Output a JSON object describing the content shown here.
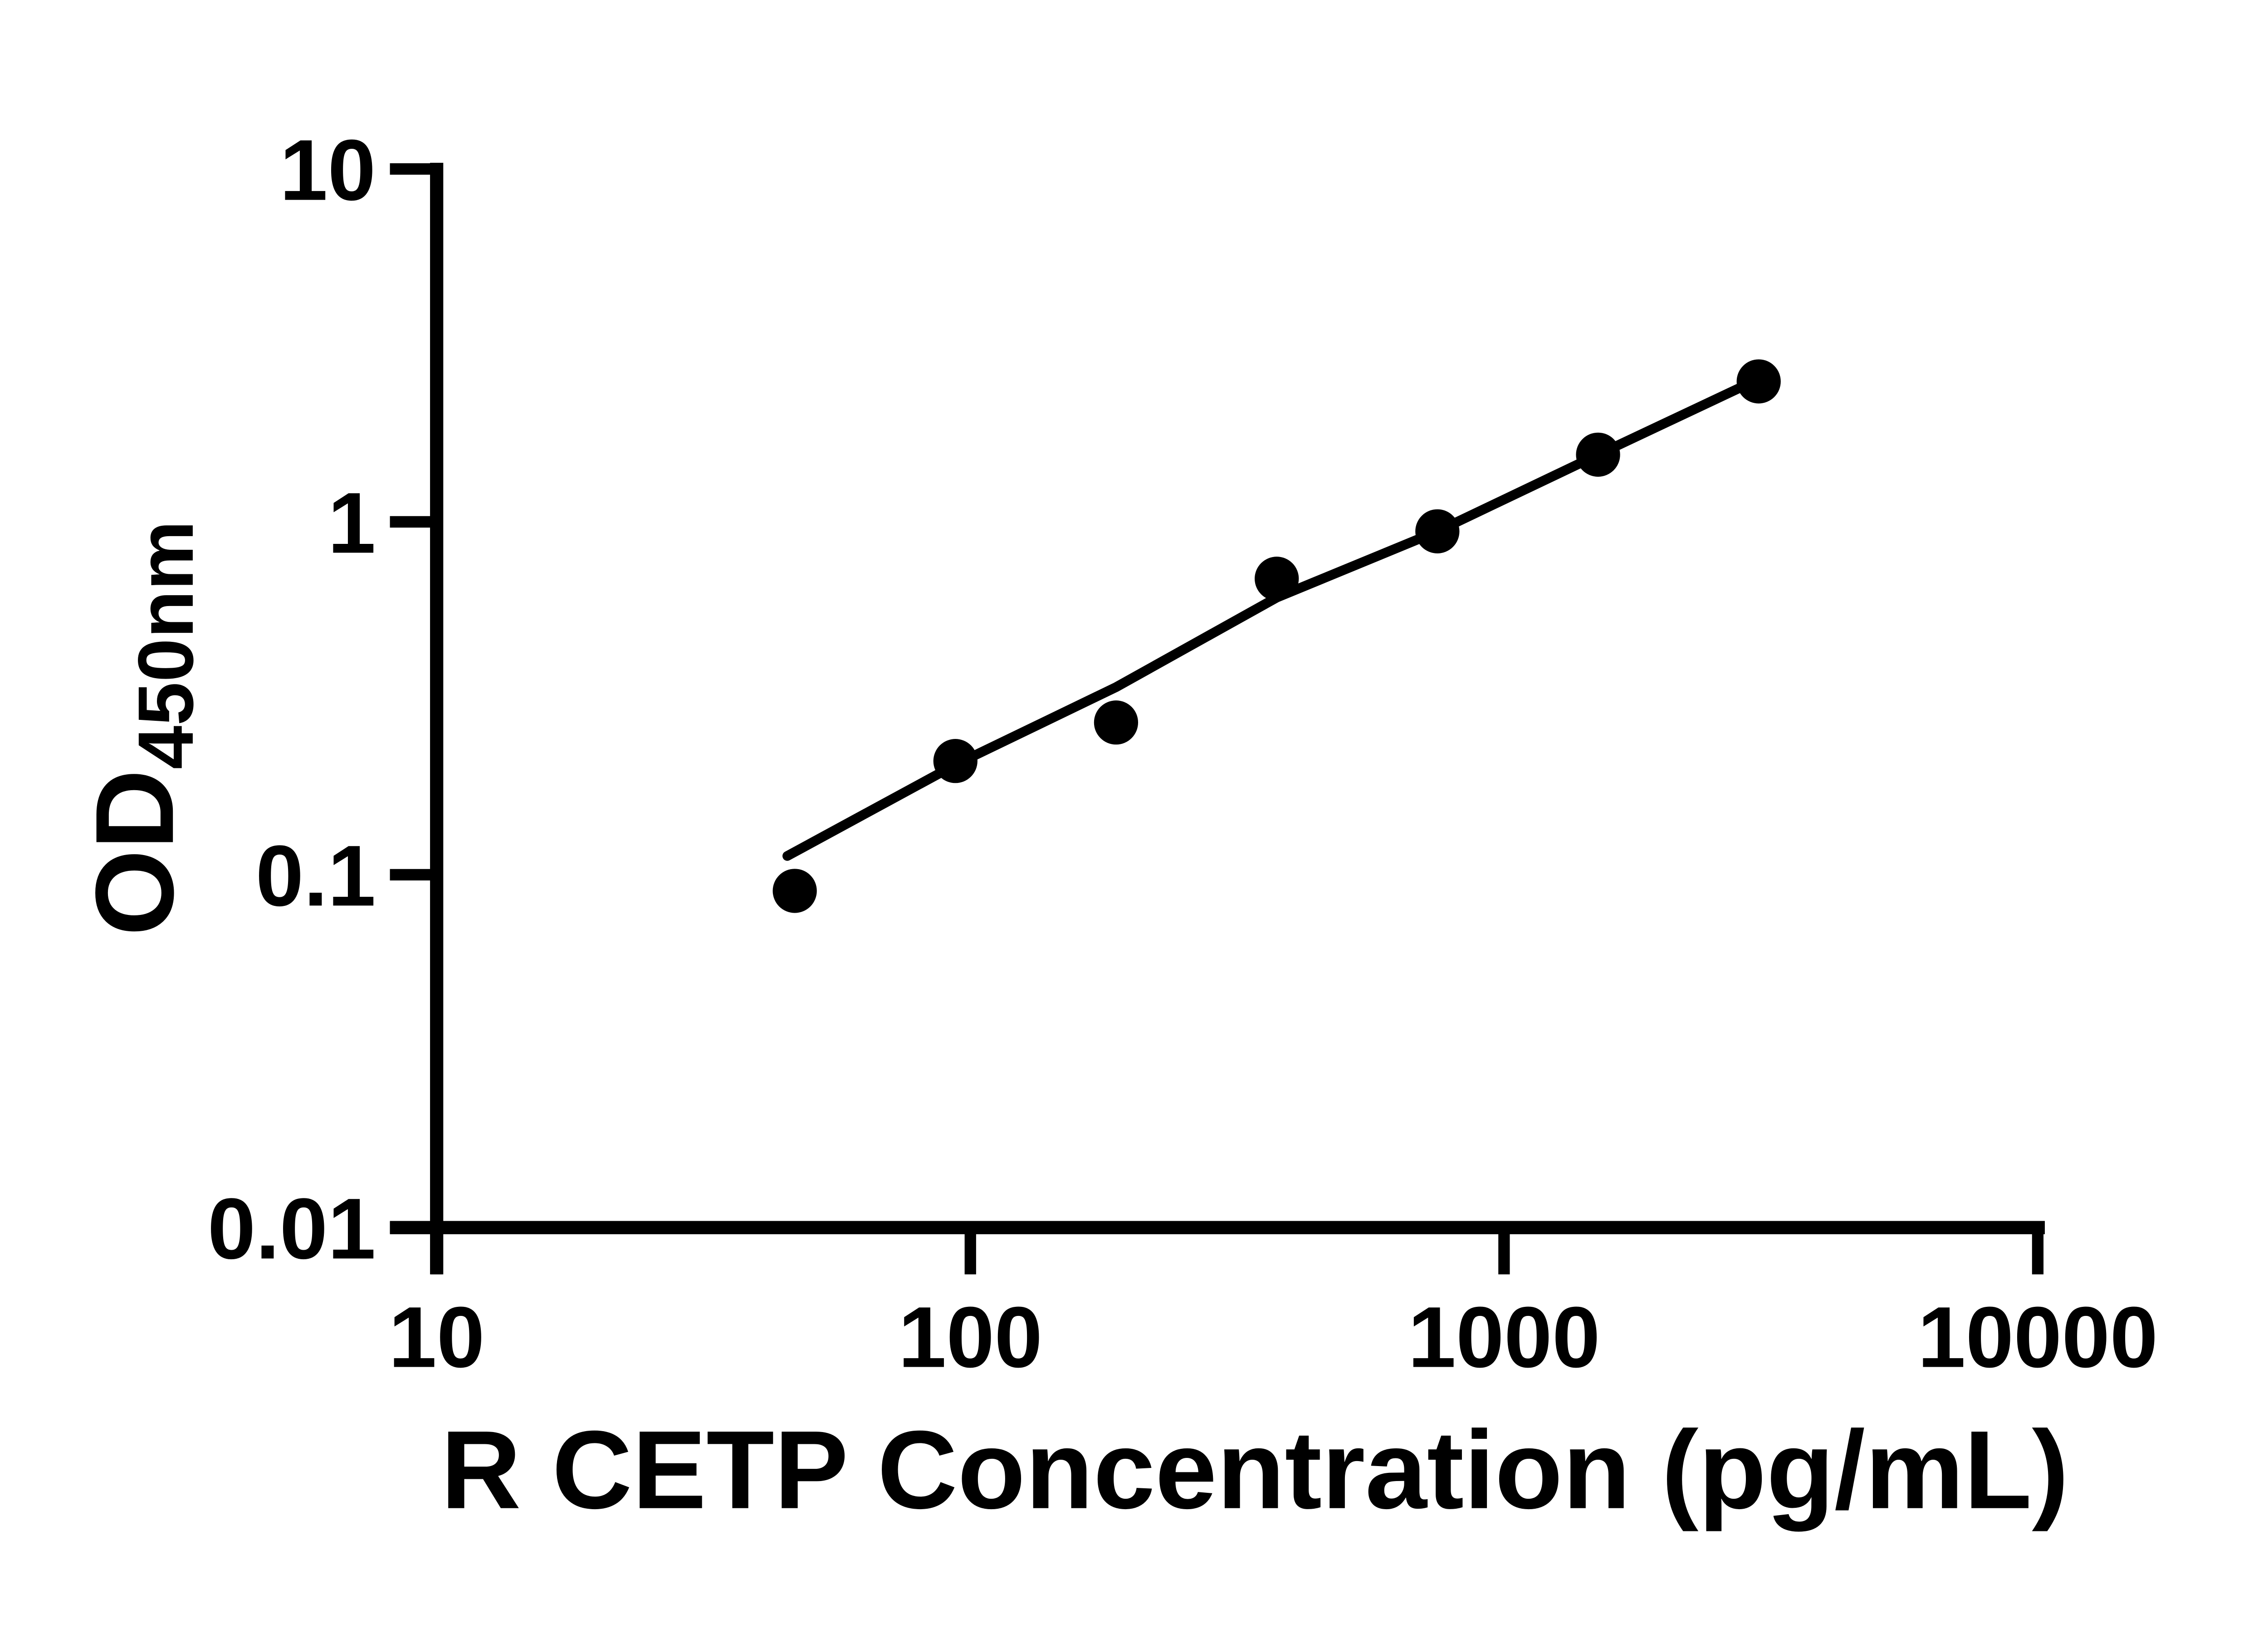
{
  "figure": {
    "background_color": "#ffffff",
    "foreground_color": "#000000",
    "title": ""
  },
  "chart_data": {
    "type": "scatter",
    "title": "",
    "xlabel": "R CETP Concentration (pg/mL)",
    "ylabel": "OD",
    "ylabel_subscript": "450nm",
    "x_scale": "log",
    "y_scale": "log",
    "xlim": [
      10,
      10000
    ],
    "ylim": [
      0.01,
      10
    ],
    "x_ticks": [
      10,
      100,
      1000,
      10000
    ],
    "x_tick_labels": [
      "10",
      "100",
      "1000",
      "10000"
    ],
    "y_ticks": [
      10,
      1,
      0.1,
      0.01
    ],
    "y_tick_labels": [
      "10",
      "1",
      "0.1",
      "0.01"
    ],
    "grid": false,
    "legend": false,
    "series": [
      {
        "name": "standard-curve-points",
        "marker": "filled-circle",
        "color": "#000000",
        "points": [
          {
            "x": 46.88,
            "y": 0.09
          },
          {
            "x": 93.75,
            "y": 0.21
          },
          {
            "x": 187.5,
            "y": 0.27
          },
          {
            "x": 375,
            "y": 0.69
          },
          {
            "x": 750,
            "y": 0.94
          },
          {
            "x": 1500,
            "y": 1.55
          },
          {
            "x": 3000,
            "y": 2.5
          }
        ]
      }
    ],
    "fit_line": {
      "name": "fitted-standard-curve",
      "color": "#000000",
      "points": [
        {
          "x": 45.4,
          "y": 0.113
        },
        {
          "x": 93.75,
          "y": 0.205
        },
        {
          "x": 187.5,
          "y": 0.34
        },
        {
          "x": 375,
          "y": 0.61
        },
        {
          "x": 750,
          "y": 0.94
        },
        {
          "x": 1500,
          "y": 1.55
        },
        {
          "x": 2900,
          "y": 2.48
        }
      ]
    }
  }
}
